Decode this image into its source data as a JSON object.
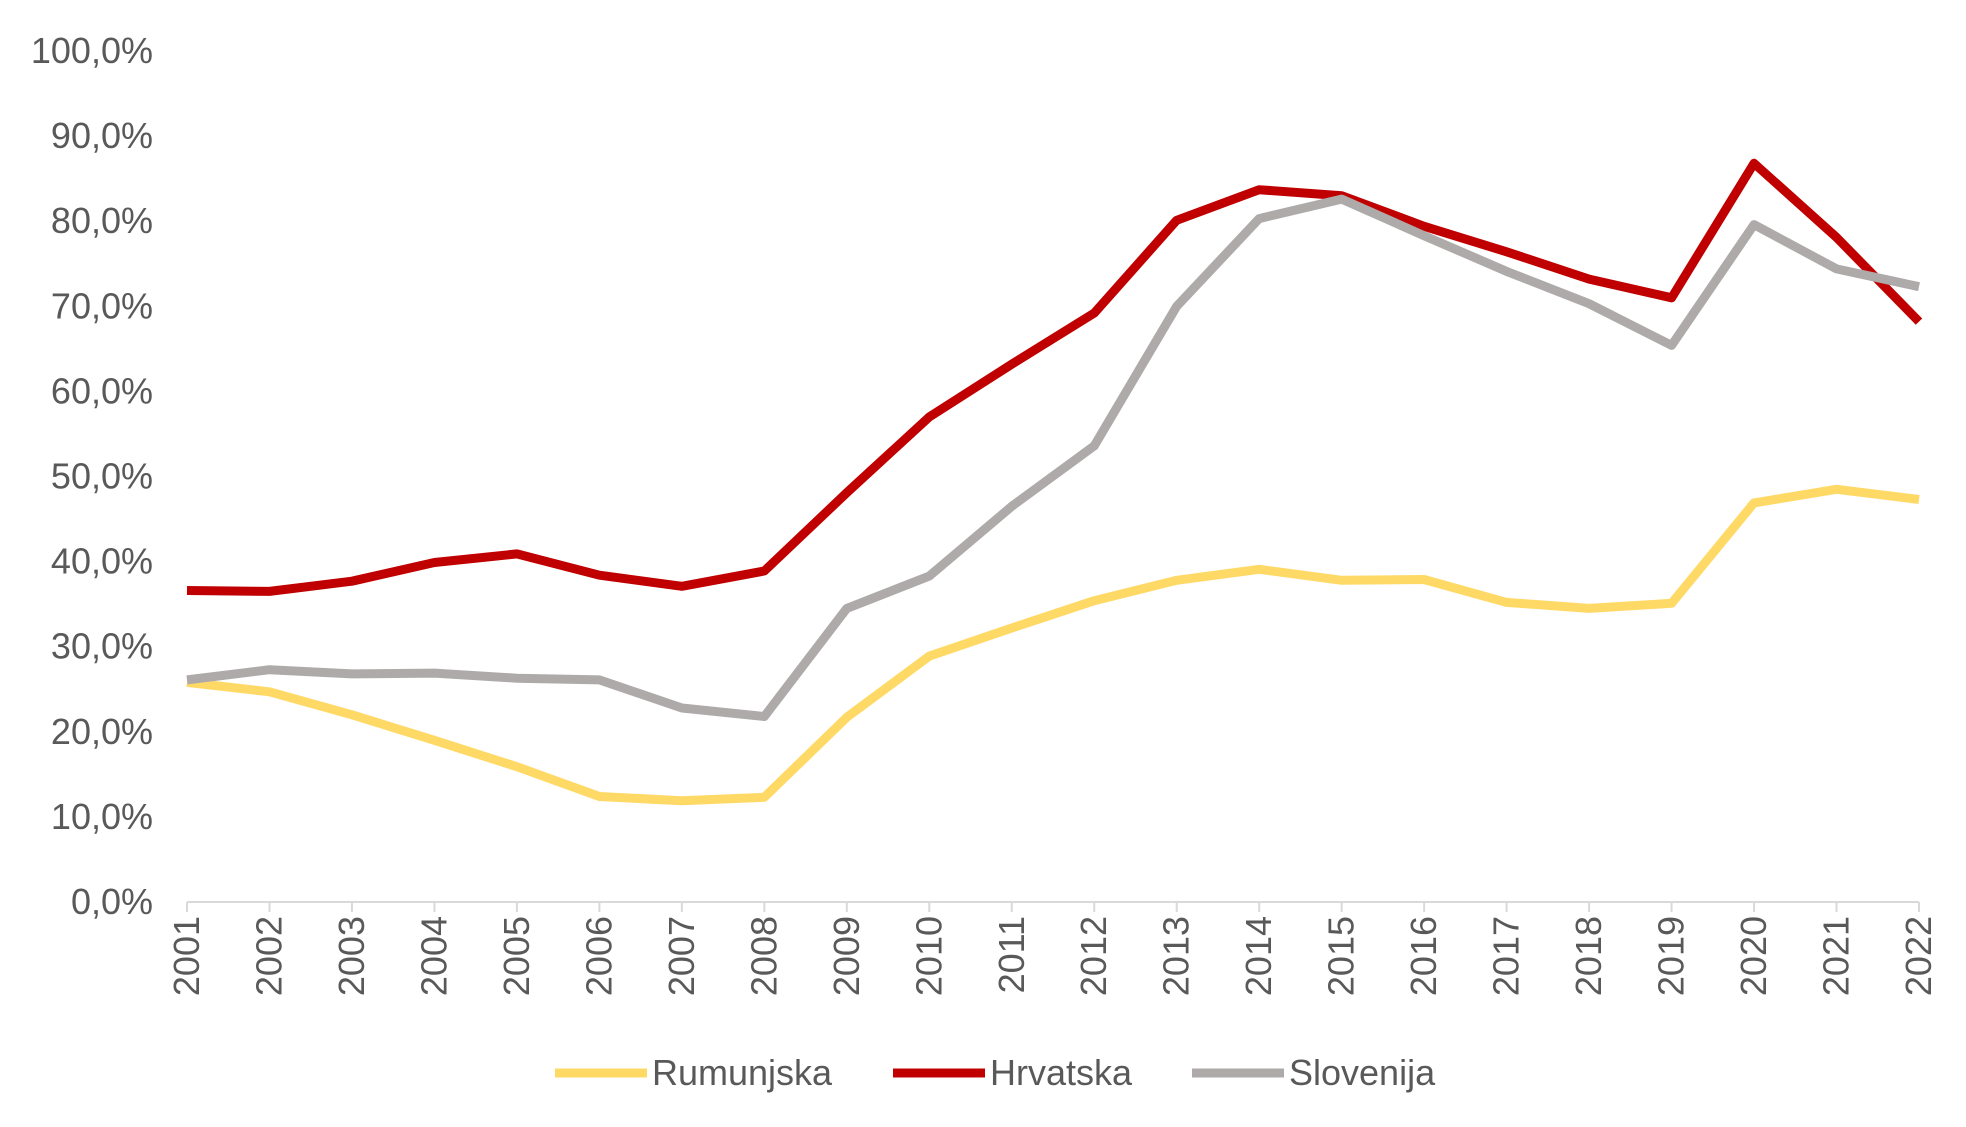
{
  "chart_data": {
    "type": "line",
    "title": "",
    "xlabel": "",
    "ylabel": "",
    "categories": [
      "2001",
      "2002",
      "2003",
      "2004",
      "2005",
      "2006",
      "2007",
      "2008",
      "2009",
      "2010",
      "2011",
      "2012",
      "2013",
      "2014",
      "2015",
      "2016",
      "2017",
      "2018",
      "2019",
      "2020",
      "2021",
      "2022"
    ],
    "ylim": [
      0,
      100
    ],
    "yticks": [
      "0,0%",
      "10,0%",
      "20,0%",
      "30,0%",
      "40,0%",
      "50,0%",
      "60,0%",
      "70,0%",
      "80,0%",
      "90,0%",
      "100,0%"
    ],
    "grid": false,
    "legend_position": "bottom",
    "series": [
      {
        "name": "Rumunjska",
        "color": "#FFD966",
        "values": [
          25.8,
          24.7,
          22.0,
          19.0,
          15.9,
          12.4,
          11.9,
          12.3,
          21.7,
          28.9,
          32.2,
          35.4,
          37.8,
          39.1,
          37.8,
          37.9,
          35.2,
          34.5,
          35.1,
          46.9,
          48.5,
          47.3
        ]
      },
      {
        "name": "Hrvatska",
        "color": "#C00000",
        "values": [
          36.6,
          36.5,
          37.7,
          39.9,
          40.9,
          38.4,
          37.1,
          38.9,
          48.1,
          57.0,
          63.2,
          69.2,
          80.1,
          83.7,
          83.0,
          79.4,
          76.4,
          73.2,
          71.0,
          86.8,
          78.1,
          68.2
        ]
      },
      {
        "name": "Slovenija",
        "color": "#AEAAAA",
        "values": [
          26.1,
          27.3,
          26.8,
          26.9,
          26.3,
          26.1,
          22.8,
          21.8,
          34.5,
          38.3,
          46.5,
          53.6,
          70.0,
          80.3,
          82.6,
          78.3,
          74.1,
          70.3,
          65.4,
          79.6,
          74.4,
          72.3
        ]
      }
    ]
  }
}
